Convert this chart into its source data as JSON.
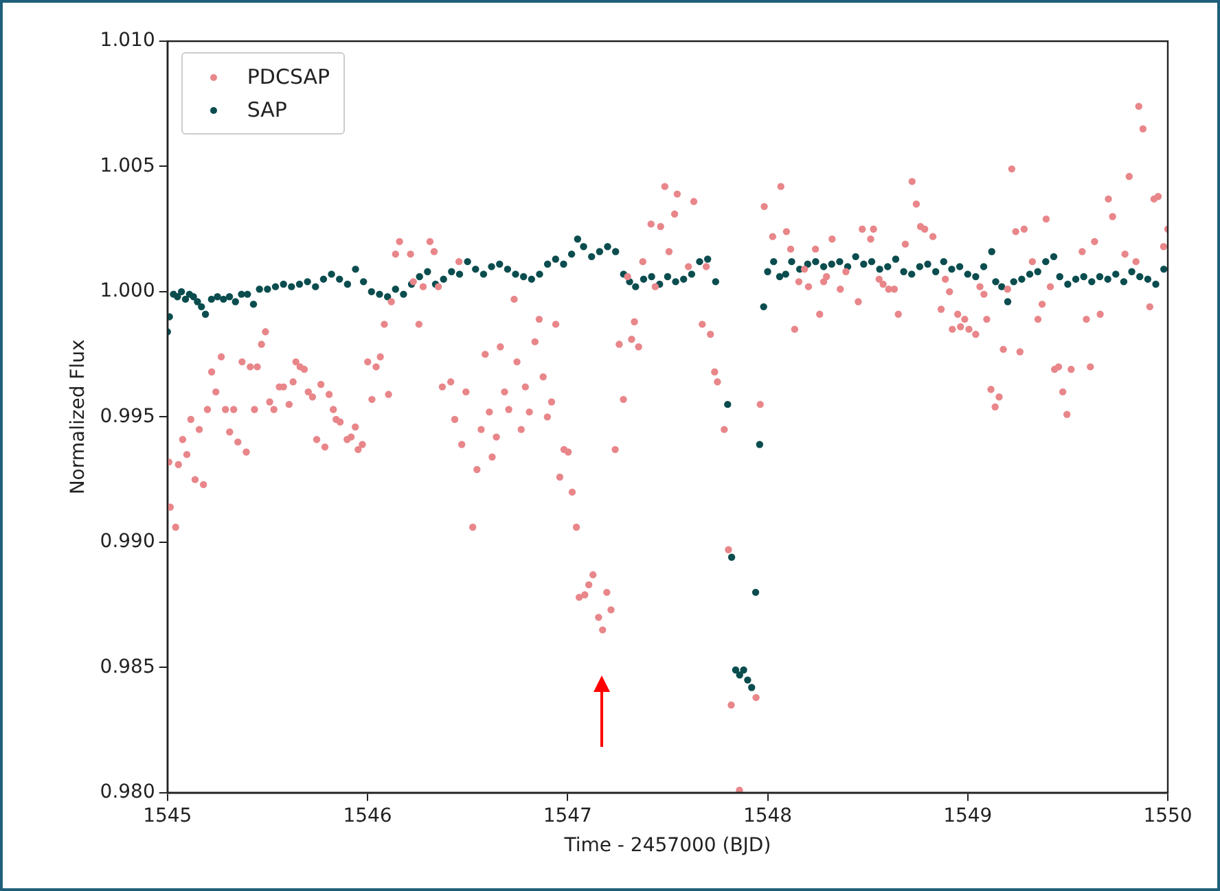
{
  "chart_data": {
    "type": "scatter",
    "xlabel": "Time - 2457000 (BJD)",
    "ylabel": "Normalized Flux",
    "xlim": [
      1545,
      1550
    ],
    "xticks": [
      1545,
      1546,
      1547,
      1548,
      1549,
      1550
    ],
    "ylim": [
      0.98,
      1.01
    ],
    "yticks": [
      {
        "value": 0.98,
        "label": "0.980"
      },
      {
        "value": 0.985,
        "label": "0.985"
      },
      {
        "value": 0.99,
        "label": "0.990"
      },
      {
        "value": 0.995,
        "label": "0.995"
      },
      {
        "value": 1.0,
        "label": "1.000"
      },
      {
        "value": 1.005,
        "label": "1.005"
      },
      {
        "value": 1.01,
        "label": "1.010"
      }
    ],
    "legend": "top left",
    "marker": "circle",
    "grid": false,
    "series": [
      {
        "name": "PDCSAP",
        "color": "#e8868a",
        "x": [
          1545.007,
          1545.014,
          1545.041,
          1545.055,
          1545.076,
          1545.097,
          1545.117,
          1545.138,
          1545.159,
          1545.18,
          1545.2,
          1545.221,
          1545.242,
          1545.269,
          1545.29,
          1545.311,
          1545.331,
          1545.352,
          1545.373,
          1545.394,
          1545.414,
          1545.435,
          1545.449,
          1545.47,
          1545.49,
          1545.511,
          1545.532,
          1545.559,
          1545.58,
          1545.608,
          1545.628,
          1545.642,
          1545.663,
          1545.684,
          1545.704,
          1545.725,
          1545.746,
          1545.767,
          1545.787,
          1545.808,
          1545.829,
          1545.843,
          1545.863,
          1545.898,
          1545.918,
          1545.939,
          1545.953,
          1545.974,
          1546.001,
          1546.022,
          1546.043,
          1546.064,
          1546.084,
          1546.105,
          1546.119,
          1546.14,
          1546.16,
          1546.215,
          1546.229,
          1546.257,
          1546.278,
          1546.312,
          1546.333,
          1546.354,
          1546.374,
          1546.416,
          1546.436,
          1546.457,
          1546.471,
          1546.492,
          1546.526,
          1546.547,
          1546.568,
          1546.588,
          1546.609,
          1546.623,
          1546.644,
          1546.664,
          1546.685,
          1546.706,
          1546.733,
          1546.747,
          1546.768,
          1546.789,
          1546.809,
          1546.837,
          1546.858,
          1546.878,
          1546.899,
          1546.92,
          1546.941,
          1546.961,
          1546.982,
          1547.003,
          1547.023,
          1547.044,
          1547.058,
          1547.086,
          1547.106,
          1547.127,
          1547.155,
          1547.175,
          1547.196,
          1547.217,
          1547.238,
          1547.258,
          1547.279,
          1547.3,
          1547.32,
          1547.334,
          1547.355,
          1547.376,
          1547.417,
          1547.438,
          1547.465,
          1547.486,
          1547.507,
          1547.535,
          1547.548,
          1547.604,
          1547.631,
          1547.673,
          1547.693,
          1547.714,
          1547.735,
          1547.749,
          1547.783,
          1547.804,
          1547.818,
          1547.859,
          1547.942,
          1547.963,
          1547.983,
          1548.025,
          1548.066,
          1548.094,
          1548.115,
          1548.135,
          1548.156,
          1548.184,
          1548.204,
          1548.239,
          1548.26,
          1548.28,
          1548.294,
          1548.322,
          1548.363,
          1548.391,
          1548.453,
          1548.473,
          1548.515,
          1548.529,
          1548.557,
          1548.577,
          1548.605,
          1548.633,
          1548.653,
          1548.688,
          1548.722,
          1548.743,
          1548.764,
          1548.785,
          1548.826,
          1548.867,
          1548.888,
          1548.909,
          1548.923,
          1548.95,
          1548.964,
          1548.985,
          1549.006,
          1549.04,
          1549.061,
          1549.081,
          1549.095,
          1549.116,
          1549.137,
          1549.157,
          1549.178,
          1549.199,
          1549.22,
          1549.24,
          1549.261,
          1549.282,
          1549.323,
          1549.351,
          1549.372,
          1549.392,
          1549.413,
          1549.434,
          1549.454,
          1549.475,
          1549.496,
          1549.517,
          1549.572,
          1549.593,
          1549.613,
          1549.634,
          1549.662,
          1549.703,
          1549.724,
          1549.786,
          1549.807,
          1549.841,
          1549.855,
          1549.876,
          1549.91,
          1549.931,
          1549.952,
          1549.979,
          1550.0
        ],
        "values": [
          0.9932,
          0.9914,
          0.9906,
          0.9931,
          0.9941,
          0.9935,
          0.9949,
          0.9925,
          0.9945,
          0.9923,
          0.9953,
          0.9968,
          0.996,
          0.9974,
          0.9953,
          0.9944,
          0.9953,
          0.994,
          0.9972,
          0.9936,
          0.997,
          0.9953,
          0.997,
          0.9979,
          0.9984,
          0.9956,
          0.9953,
          0.9962,
          0.9962,
          0.9955,
          0.9964,
          0.9972,
          0.997,
          0.9969,
          0.996,
          0.9958,
          0.9941,
          0.9963,
          0.9938,
          0.9959,
          0.9953,
          0.9949,
          0.9948,
          0.9941,
          0.9942,
          0.9946,
          0.9937,
          0.9939,
          0.9972,
          0.9957,
          0.997,
          0.9974,
          0.9987,
          0.9959,
          0.9996,
          1.0015,
          1.002,
          1.0015,
          1.0004,
          0.9987,
          1.0002,
          1.002,
          1.0016,
          1.0002,
          0.9962,
          0.9964,
          0.9949,
          1.0012,
          0.9939,
          0.996,
          0.9906,
          0.9929,
          0.9945,
          0.9975,
          0.9952,
          0.9934,
          0.9942,
          0.9978,
          0.996,
          0.9953,
          0.9997,
          0.9972,
          0.9945,
          0.9962,
          0.9952,
          0.998,
          0.9989,
          0.9966,
          0.995,
          0.9956,
          0.9987,
          0.9926,
          0.9937,
          0.9936,
          0.992,
          0.9906,
          0.9878,
          0.9879,
          0.9883,
          0.9887,
          0.987,
          0.9865,
          0.988,
          0.9873,
          0.9937,
          0.9979,
          0.9957,
          1.0006,
          0.9981,
          0.9988,
          0.9978,
          1.0012,
          1.0027,
          1.0002,
          1.0026,
          1.0042,
          1.0016,
          1.0031,
          1.0039,
          1.001,
          1.0036,
          0.9987,
          1.001,
          0.9983,
          0.9968,
          0.9964,
          0.9945,
          0.9897,
          0.9835,
          0.9801,
          0.9838,
          0.9955,
          1.0034,
          1.0022,
          1.0042,
          1.0024,
          1.0017,
          0.9985,
          1.0004,
          1.0009,
          1.0002,
          1.0017,
          0.9991,
          1.0004,
          1.0006,
          1.0021,
          1.0001,
          1.0008,
          0.9996,
          1.0025,
          1.0021,
          1.0025,
          1.0005,
          1.0003,
          1.0001,
          1.0001,
          0.9991,
          1.0019,
          1.0044,
          1.0035,
          1.0026,
          1.0025,
          1.0022,
          0.9993,
          1.0005,
          1.0,
          0.9985,
          0.9991,
          0.9986,
          0.9989,
          0.9985,
          0.9983,
          1.0002,
          0.9999,
          0.9989,
          0.9961,
          0.9954,
          0.9958,
          0.9977,
          1.0001,
          1.0049,
          1.0024,
          0.9976,
          1.0025,
          1.0012,
          0.9989,
          0.9995,
          1.0029,
          1.0002,
          0.9969,
          0.997,
          0.996,
          0.9951,
          0.9969,
          1.0016,
          0.9989,
          0.997,
          1.002,
          0.9991,
          1.0037,
          1.003,
          1.0015,
          1.0046,
          1.0012,
          1.0074,
          1.0065,
          0.9994,
          1.0037,
          1.0038,
          1.0018,
          1.0025
        ]
      },
      {
        "name": "SAP",
        "color": "#0b4d4f",
        "x": [
          1545.0,
          1545.01,
          1545.03,
          1545.05,
          1545.07,
          1545.09,
          1545.11,
          1545.13,
          1545.15,
          1545.17,
          1545.19,
          1545.22,
          1545.25,
          1545.28,
          1545.31,
          1545.34,
          1545.37,
          1545.4,
          1545.43,
          1545.46,
          1545.5,
          1545.54,
          1545.58,
          1545.62,
          1545.66,
          1545.7,
          1545.74,
          1545.78,
          1545.82,
          1545.86,
          1545.9,
          1545.94,
          1545.98,
          1546.02,
          1546.06,
          1546.1,
          1546.14,
          1546.18,
          1546.22,
          1546.26,
          1546.3,
          1546.34,
          1546.38,
          1546.42,
          1546.46,
          1546.5,
          1546.54,
          1546.58,
          1546.62,
          1546.66,
          1546.7,
          1546.74,
          1546.78,
          1546.82,
          1546.86,
          1546.9,
          1546.94,
          1546.98,
          1547.02,
          1547.05,
          1547.08,
          1547.12,
          1547.16,
          1547.2,
          1547.24,
          1547.28,
          1547.31,
          1547.34,
          1547.38,
          1547.42,
          1547.46,
          1547.5,
          1547.54,
          1547.58,
          1547.62,
          1547.66,
          1547.7,
          1547.74,
          1547.8,
          1547.82,
          1547.84,
          1547.86,
          1547.88,
          1547.9,
          1547.92,
          1547.94,
          1547.96,
          1547.98,
          1548.0,
          1548.03,
          1548.06,
          1548.09,
          1548.12,
          1548.16,
          1548.2,
          1548.24,
          1548.28,
          1548.32,
          1548.36,
          1548.4,
          1548.44,
          1548.48,
          1548.52,
          1548.56,
          1548.6,
          1548.64,
          1548.68,
          1548.72,
          1548.76,
          1548.8,
          1548.84,
          1548.88,
          1548.92,
          1548.96,
          1549.0,
          1549.04,
          1549.08,
          1549.12,
          1549.14,
          1549.17,
          1549.2,
          1549.23,
          1549.27,
          1549.31,
          1549.35,
          1549.39,
          1549.43,
          1549.46,
          1549.5,
          1549.54,
          1549.58,
          1549.62,
          1549.66,
          1549.7,
          1549.74,
          1549.78,
          1549.82,
          1549.86,
          1549.9,
          1549.94,
          1549.98
        ],
        "values": [
          0.9984,
          0.999,
          0.9999,
          0.9998,
          1.0,
          0.9997,
          0.9999,
          0.9998,
          0.9996,
          0.9994,
          0.9991,
          0.9997,
          0.9998,
          0.9997,
          0.9998,
          0.9996,
          0.9999,
          0.9999,
          0.9995,
          1.0001,
          1.0001,
          1.0002,
          1.0003,
          1.0002,
          1.0003,
          1.0004,
          1.0002,
          1.0005,
          1.0007,
          1.0005,
          1.0003,
          1.0009,
          1.0004,
          1.0,
          0.9999,
          0.9998,
          1.0001,
          0.9999,
          1.0003,
          1.0006,
          1.0008,
          1.0003,
          1.0005,
          1.0008,
          1.0007,
          1.0012,
          1.0009,
          1.0007,
          1.001,
          1.0011,
          1.0009,
          1.0007,
          1.0006,
          1.0005,
          1.0007,
          1.0011,
          1.0013,
          1.0011,
          1.0015,
          1.0021,
          1.0018,
          1.0014,
          1.0016,
          1.0018,
          1.0016,
          1.0007,
          1.0004,
          1.0002,
          1.0005,
          1.0006,
          1.0003,
          1.0006,
          1.0004,
          1.0005,
          1.0007,
          1.0012,
          1.0013,
          1.0004,
          0.9955,
          0.9894,
          0.9849,
          0.9847,
          0.9849,
          0.9845,
          0.9842,
          0.988,
          0.9939,
          0.9994,
          1.0008,
          1.0012,
          1.0006,
          1.0007,
          1.0012,
          1.0009,
          1.0011,
          1.0012,
          1.001,
          1.0011,
          1.0012,
          1.001,
          1.0014,
          1.0011,
          1.0012,
          1.0009,
          1.001,
          1.0013,
          1.0008,
          1.0007,
          1.001,
          1.0011,
          1.0008,
          1.0012,
          1.0009,
          1.001,
          1.0007,
          1.0006,
          1.001,
          1.0016,
          1.0004,
          1.0002,
          0.9996,
          1.0004,
          1.0005,
          1.0007,
          1.0008,
          1.0012,
          1.0014,
          1.0006,
          1.0003,
          1.0005,
          1.0006,
          1.0004,
          1.0006,
          1.0005,
          1.0007,
          1.0004,
          1.0008,
          1.0006,
          1.0005,
          1.0003,
          1.0009
        ]
      }
    ]
  }
}
